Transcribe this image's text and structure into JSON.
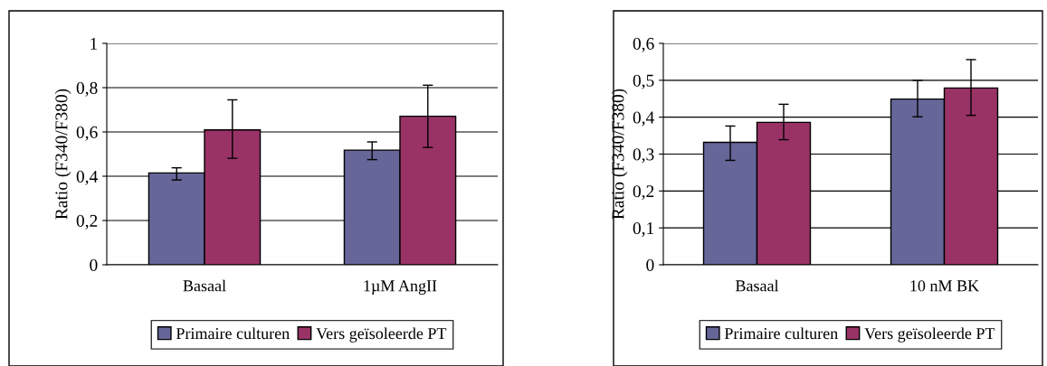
{
  "chart_data": [
    {
      "type": "bar",
      "categories": [
        "Basaal",
        "1µM AngII"
      ],
      "ylabel": "Ratio (F340/F380)",
      "series": [
        {
          "name": "Primaire culturen",
          "color": "#666699",
          "values": [
            0.415,
            0.518
          ],
          "errors": [
            [
              0.383,
              0.438
            ],
            [
              0.475,
              0.555
            ]
          ]
        },
        {
          "name": "Vers geïsoleerde PT",
          "color": "#993366",
          "values": [
            0.609,
            0.671
          ],
          "errors": [
            [
              0.481,
              0.745
            ],
            [
              0.53,
              0.811
            ]
          ]
        }
      ],
      "ylim": [
        0,
        1
      ],
      "yticks": [
        0,
        {
          "value": 0.2,
          "label": "0,2"
        },
        {
          "value": 0.4,
          "label": "0,4"
        },
        {
          "value": 0.6,
          "label": "0,6"
        },
        {
          "value": 0.8,
          "label": "0,8"
        },
        1
      ],
      "grid": "y",
      "legend": "bottom"
    },
    {
      "type": "bar",
      "categories": [
        "Basaal",
        "10 nM BK"
      ],
      "ylabel": "Ratio (F340/F380)",
      "series": [
        {
          "name": "Primaire culturen",
          "color": "#666699",
          "values": [
            0.332,
            0.449
          ],
          "errors": [
            [
              0.283,
              0.376
            ],
            [
              0.401,
              0.5
            ]
          ]
        },
        {
          "name": "Vers geïsoleerde PT",
          "color": "#993366",
          "values": [
            0.386,
            0.479
          ],
          "errors": [
            [
              0.339,
              0.435
            ],
            [
              0.405,
              0.556
            ]
          ]
        }
      ],
      "ylim": [
        0,
        0.6
      ],
      "yticks": [
        0,
        {
          "value": 0.1,
          "label": "0,1"
        },
        {
          "value": 0.2,
          "label": "0,2"
        },
        {
          "value": 0.3,
          "label": "0,3"
        },
        {
          "value": 0.4,
          "label": "0,4"
        },
        {
          "value": 0.5,
          "label": "0,5"
        },
        {
          "value": 0.6,
          "label": "0,6"
        }
      ],
      "grid": "y",
      "legend": "bottom"
    }
  ]
}
